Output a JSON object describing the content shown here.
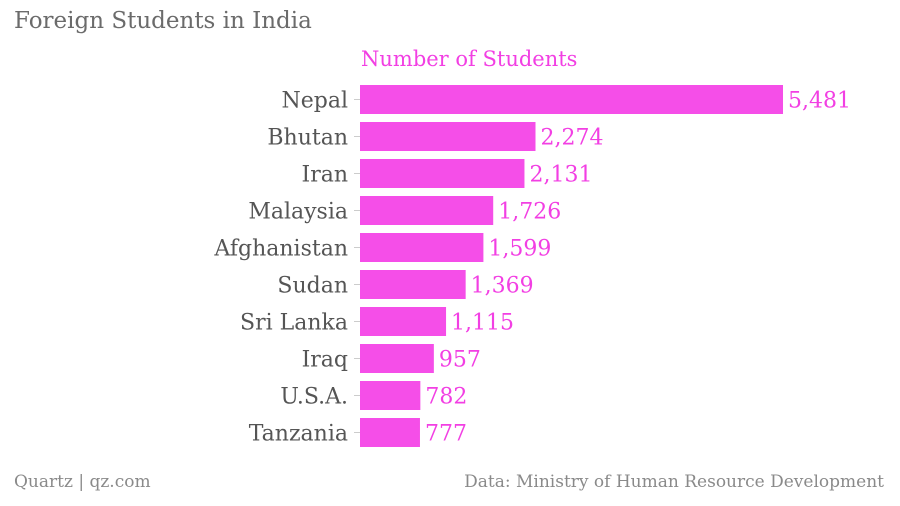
{
  "title": "Foreign Students in India",
  "footer": {
    "source_left": "Quartz | qz.com",
    "source_right": "Data: Ministry of Human Resource Development"
  },
  "colors": {
    "bar": "#f54ee8",
    "value_text": "#f23fe3",
    "title": "#6b6b6b",
    "category_text": "#555555"
  },
  "chart_data": {
    "type": "bar",
    "orientation": "horizontal",
    "categories": [
      "Nepal",
      "Bhutan",
      "Iran",
      "Malaysia",
      "Afghanistan",
      "Sudan",
      "Sri Lanka",
      "Iraq",
      "U.S.A.",
      "Tanzania"
    ],
    "series": [
      {
        "name": "Number of Students",
        "values": [
          5481,
          2274,
          2131,
          1726,
          1599,
          1369,
          1115,
          957,
          782,
          777
        ],
        "labels": [
          "5,481",
          "2,274",
          "2,131",
          "1,726",
          "1,599",
          "1,369",
          "1,115",
          "957",
          "782",
          "777"
        ]
      }
    ],
    "grid": false,
    "legend": "top"
  }
}
